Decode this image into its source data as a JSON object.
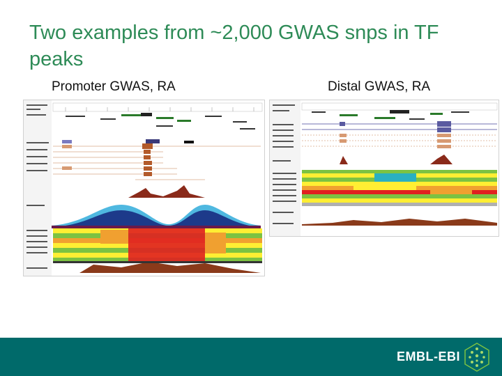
{
  "slide": {
    "title": "Two examples from ~2,000 GWAS snps in TF peaks",
    "left_caption": "Promoter GWAS, RA",
    "right_caption": "Distal GWAS, RA"
  },
  "footer": {
    "brand": "EMBL-EBI",
    "background_color": "#006a6a",
    "logo_icon": "hexagon-dots-logo"
  },
  "colors": {
    "title": "#2e8b57",
    "track_red": "#c0392b",
    "track_orange": "#f0a030",
    "track_green": "#7cc242",
    "track_yellow": "#ffee33"
  }
}
